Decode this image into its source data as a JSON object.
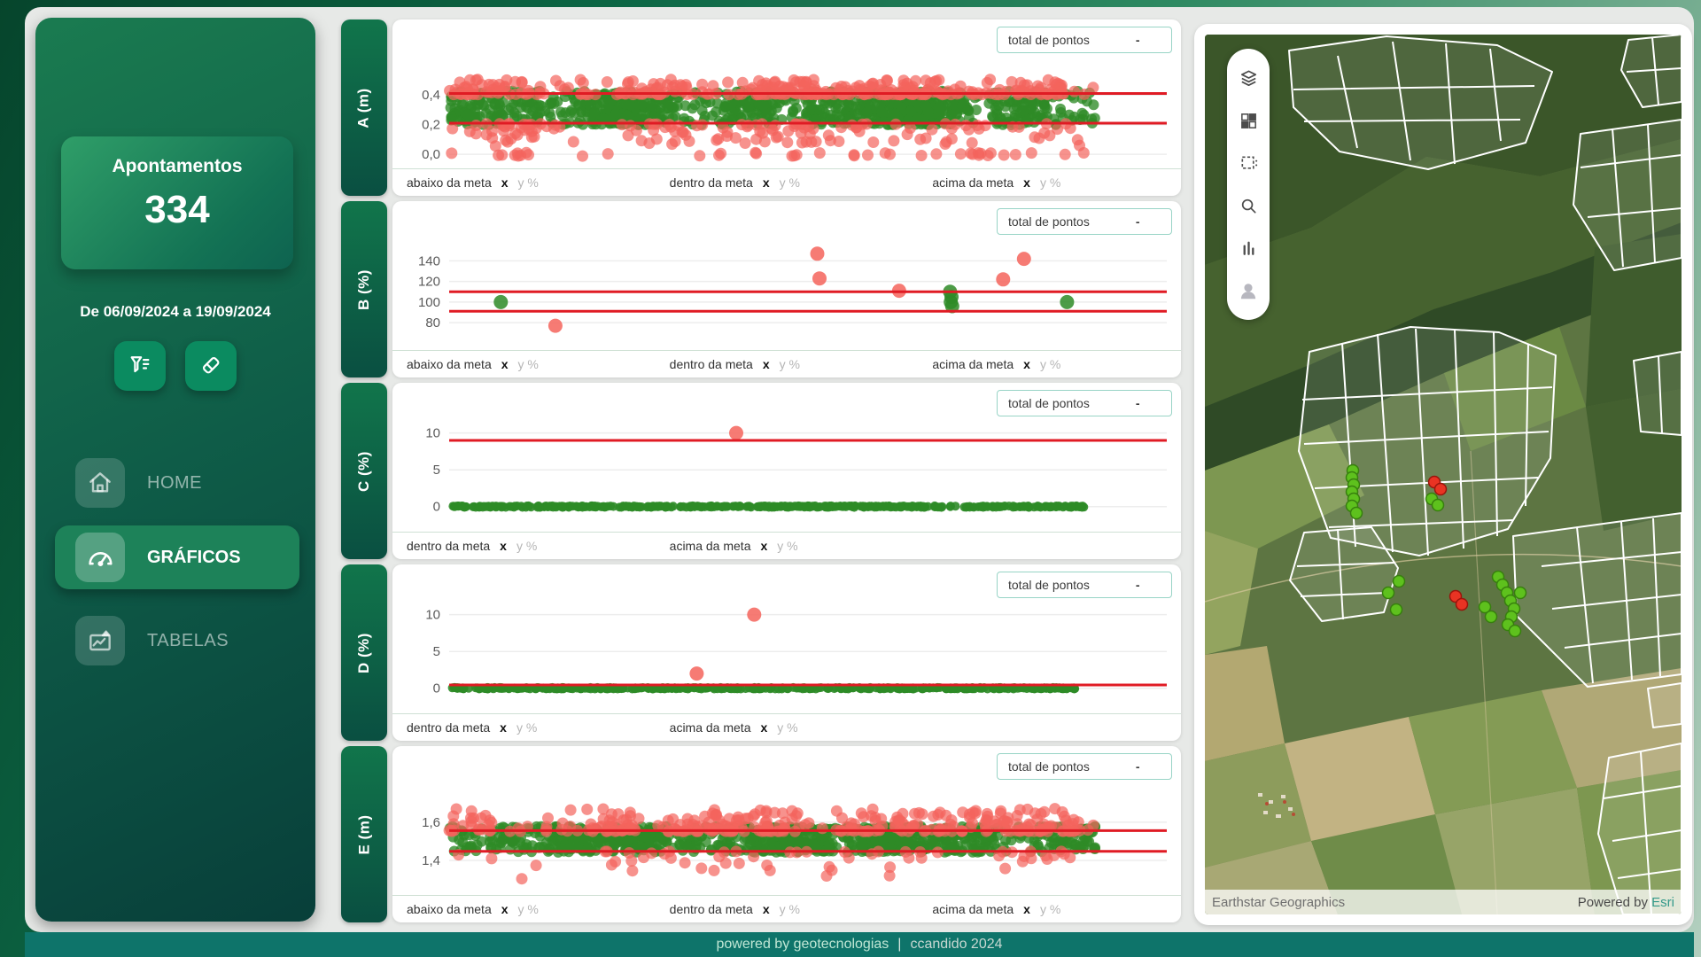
{
  "sidebar": {
    "summary_card": {
      "title": "Apontamentos",
      "value": "334"
    },
    "date_range": "De 06/09/2024 a 19/09/2024",
    "nav": [
      {
        "label": "HOME"
      },
      {
        "label": "GRÁFICOS"
      },
      {
        "label": "TABELAS"
      }
    ]
  },
  "charts": {
    "total_label": "total de pontos",
    "legend_x": "x",
    "legend_y": "y %"
  },
  "chart_data": [
    {
      "type": "scatter",
      "ylabel": "A (m)",
      "yticks": [
        {
          "v": 0.4,
          "label": "0,4"
        },
        {
          "v": 0.2,
          "label": "0,2"
        },
        {
          "v": 0.0,
          "label": "0,0"
        }
      ],
      "yrange": [
        -0.035,
        0.61
      ],
      "meta_lines": [
        0.41,
        0.21
      ],
      "total": "-",
      "legend": [
        "abaixo da meta",
        "dentro da meta",
        "acima da meta"
      ],
      "data_xmax": 0.9,
      "generated": [
        {
          "color": "green",
          "band": [
            0.198,
            0.428
          ],
          "count": 1000
        },
        {
          "color": "red",
          "band": [
            0.403,
            0.505
          ],
          "count": 330,
          "edge": "low"
        },
        {
          "color": "red",
          "band": [
            0.055,
            0.205
          ],
          "count": 140,
          "edge": "high"
        },
        {
          "color": "red",
          "band": [
            -0.012,
            0.012
          ],
          "count": 40
        }
      ]
    },
    {
      "type": "scatter",
      "ylabel": "B (%)",
      "yticks": [
        {
          "v": 140,
          "label": "140"
        },
        {
          "v": 120,
          "label": "120"
        },
        {
          "v": 100,
          "label": "100"
        },
        {
          "v": 80,
          "label": "80"
        }
      ],
      "yrange": [
        62,
        155
      ],
      "meta_lines": [
        110,
        91
      ],
      "total": "-",
      "legend": [
        "abaixo da meta",
        "dentro da meta",
        "acima da meta"
      ],
      "points": [
        {
          "x": 0.072,
          "y": 100,
          "c": "green"
        },
        {
          "x": 0.148,
          "y": 77,
          "c": "red"
        },
        {
          "x": 0.513,
          "y": 147,
          "c": "red"
        },
        {
          "x": 0.516,
          "y": 123,
          "c": "red"
        },
        {
          "x": 0.627,
          "y": 111,
          "c": "red"
        },
        {
          "x": 0.698,
          "y": 110,
          "c": "green"
        },
        {
          "x": 0.7,
          "y": 105,
          "c": "green"
        },
        {
          "x": 0.699,
          "y": 100,
          "c": "green"
        },
        {
          "x": 0.701,
          "y": 96,
          "c": "green"
        },
        {
          "x": 0.772,
          "y": 122,
          "c": "red"
        },
        {
          "x": 0.801,
          "y": 142,
          "c": "red"
        },
        {
          "x": 0.861,
          "y": 100,
          "c": "green"
        }
      ]
    },
    {
      "type": "scatter",
      "ylabel": "C (%)",
      "yticks": [
        {
          "v": 10,
          "label": "10"
        },
        {
          "v": 5,
          "label": "5"
        },
        {
          "v": 0,
          "label": "0"
        }
      ],
      "yrange": [
        -2.2,
        10.8
      ],
      "meta_lines": [
        9
      ],
      "total": "-",
      "legend": [
        "dentro da meta",
        "acima da meta"
      ],
      "points": [
        {
          "x": 0.4,
          "y": 10,
          "c": "red"
        }
      ],
      "band": {
        "x": [
          0.004,
          0.888
        ],
        "y": [
          -0.1,
          0.1
        ],
        "count": 430
      }
    },
    {
      "type": "scatter",
      "ylabel": "D (%)",
      "yticks": [
        {
          "v": 10,
          "label": "10"
        },
        {
          "v": 5,
          "label": "5"
        },
        {
          "v": 0,
          "label": "0"
        }
      ],
      "yrange": [
        -2.2,
        10.8
      ],
      "meta_lines": [
        0.45
      ],
      "total": "-",
      "legend": [
        "dentro da meta",
        "acima da meta"
      ],
      "points": [
        {
          "x": 0.345,
          "y": 2,
          "c": "red"
        },
        {
          "x": 0.425,
          "y": 10,
          "c": "red"
        }
      ],
      "band": {
        "x": [
          0.004,
          0.872
        ],
        "y": [
          -0.1,
          0.1
        ],
        "count": 430
      }
    },
    {
      "type": "scatter",
      "ylabel": "E (m)",
      "yticks": [
        {
          "v": 1.6,
          "label": "1,6"
        },
        {
          "v": 1.4,
          "label": "1,4"
        }
      ],
      "yrange": [
        1.265,
        1.767
      ],
      "meta_lines": [
        1.556,
        1.447
      ],
      "total": "-",
      "legend": [
        "abaixo da meta",
        "dentro da meta",
        "acima da meta"
      ],
      "data_xmax": 0.9,
      "generated": [
        {
          "color": "green",
          "band": [
            1.442,
            1.578
          ],
          "count": 950
        },
        {
          "color": "red",
          "band": [
            1.552,
            1.672
          ],
          "count": 320,
          "edge": "low"
        },
        {
          "color": "red",
          "band": [
            1.34,
            1.447
          ],
          "count": 55,
          "edge": "high"
        },
        {
          "color": "red",
          "band": [
            1.3,
            1.336
          ],
          "count": 3
        }
      ]
    }
  ],
  "map": {
    "attribution_left": "Earthstar Geographics",
    "attribution_right_prefix": "Powered by",
    "attribution_right_brand": "Esri",
    "markers": {
      "green": [
        [
          167,
          492
        ],
        [
          166,
          500
        ],
        [
          168,
          508
        ],
        [
          166,
          516
        ],
        [
          168,
          524
        ],
        [
          166,
          532
        ],
        [
          171,
          540
        ],
        [
          256,
          524
        ],
        [
          263,
          531
        ],
        [
          219,
          617
        ],
        [
          207,
          630
        ],
        [
          216,
          649
        ],
        [
          331,
          612
        ],
        [
          336,
          621
        ],
        [
          341,
          630
        ],
        [
          345,
          639
        ],
        [
          349,
          648
        ],
        [
          346,
          657
        ],
        [
          342,
          666
        ],
        [
          350,
          673
        ],
        [
          316,
          646
        ],
        [
          323,
          657
        ],
        [
          356,
          630
        ]
      ],
      "red": [
        [
          259,
          505
        ],
        [
          266,
          513
        ],
        [
          283,
          634
        ],
        [
          290,
          643
        ]
      ]
    }
  },
  "footer": {
    "left": "powered by geotecnologias",
    "separator": "|",
    "right": "ccandido 2024"
  }
}
